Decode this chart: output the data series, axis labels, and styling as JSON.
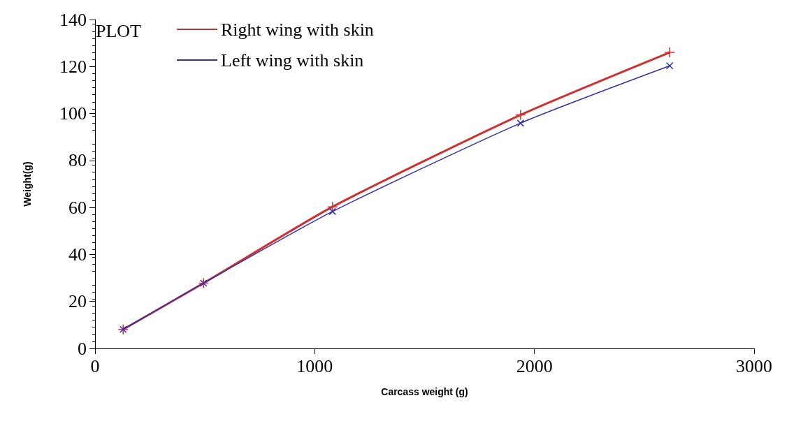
{
  "chart_data": {
    "type": "line",
    "legend_title": "PLOT",
    "xlabel": "Carcass weight (g)",
    "ylabel": "Weight(g)",
    "xlim": [
      0,
      3000
    ],
    "xticks": [
      0,
      1000,
      2000,
      3000
    ],
    "ylim": [
      0,
      140
    ],
    "yticks": [
      0,
      20,
      40,
      60,
      80,
      100,
      120,
      140
    ],
    "grid": false,
    "legend": "top left",
    "series": [
      {
        "name": "Right wing with skin",
        "color": "#d03030",
        "marker": "cross",
        "x": [
          128,
          494,
          1081,
          1937,
          2616
        ],
        "values": [
          8.1,
          27.8,
          60.3,
          99.4,
          126
        ]
      },
      {
        "name": "Left wing with skin",
        "color": "#3030b0",
        "marker": "x",
        "x": [
          128,
          494,
          1081,
          1937,
          2616
        ],
        "values": [
          8.1,
          27.8,
          58.3,
          95.9,
          120.3
        ]
      }
    ]
  }
}
